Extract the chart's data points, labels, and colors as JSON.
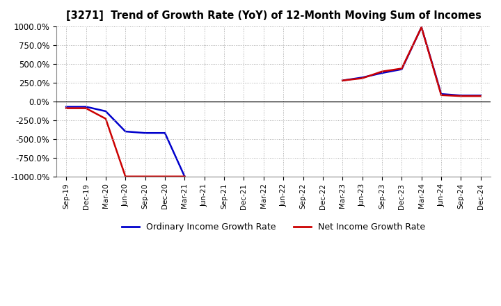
{
  "title": "[3271]  Trend of Growth Rate (YoY) of 12-Month Moving Sum of Incomes",
  "ylim": [
    -1000,
    1000
  ],
  "yticks": [
    -1000,
    -750,
    -500,
    -250,
    0,
    250,
    500,
    750,
    1000
  ],
  "ytick_labels": [
    "-1000.0%",
    "-750.0%",
    "-500.0%",
    "-250.0%",
    "0.0%",
    "250.0%",
    "500.0%",
    "750.0%",
    "1000.0%"
  ],
  "background_color": "#ffffff",
  "grid_color": "#aaaaaa",
  "ordinary_color": "#0000cc",
  "net_color": "#cc0000",
  "line_width": 1.8,
  "dates": [
    "Sep-19",
    "Dec-19",
    "Mar-20",
    "Jun-20",
    "Sep-20",
    "Dec-20",
    "Mar-21",
    "Jun-21",
    "Sep-21",
    "Dec-21",
    "Mar-22",
    "Jun-22",
    "Sep-22",
    "Dec-22",
    "Mar-23",
    "Jun-23",
    "Sep-23",
    "Dec-23",
    "Mar-24",
    "Jun-24",
    "Sep-24",
    "Dec-24"
  ],
  "ordinary_income_growth": [
    -70,
    -70,
    -130,
    -400,
    -420,
    -420,
    -1000,
    null,
    null,
    null,
    null,
    null,
    null,
    null,
    280,
    320,
    380,
    430,
    990,
    100,
    80,
    80
  ],
  "net_income_growth": [
    -90,
    -90,
    -230,
    -1000,
    -1000,
    -1000,
    -1000,
    null,
    null,
    null,
    null,
    null,
    null,
    null,
    280,
    310,
    400,
    440,
    990,
    85,
    72,
    72
  ],
  "legend_labels": [
    "Ordinary Income Growth Rate",
    "Net Income Growth Rate"
  ]
}
